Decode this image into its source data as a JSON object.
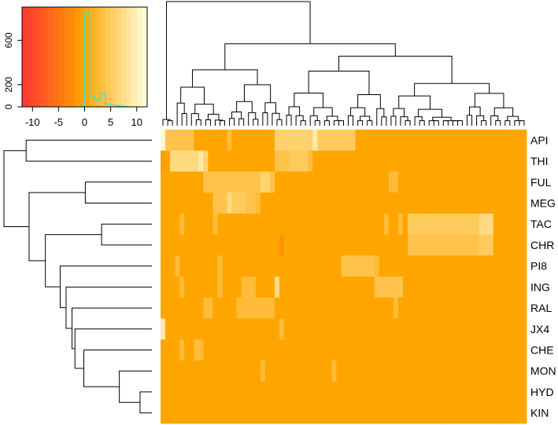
{
  "chart_data": {
    "type": "heatmap",
    "title": "",
    "xlabel": "",
    "ylabel": "",
    "rows": [
      "API",
      "THI",
      "FUL",
      "MEG",
      "TAC",
      "CHR",
      "PI8",
      "ING",
      "RAL",
      "JX4",
      "CHE",
      "MON",
      "HYD",
      "KIN"
    ],
    "column_count": 77,
    "base_value": 0,
    "color_scale": {
      "low": -12,
      "high": 12,
      "low_color": "#ff3333",
      "mid_color": "#ffa500",
      "high_color": "#ffffe0",
      "ticks": [
        "-10",
        "-5",
        "0",
        "5",
        "10"
      ]
    },
    "highlights": [
      {
        "row": "API",
        "from": 0,
        "to": 0,
        "value": 11
      },
      {
        "row": "API",
        "from": 1,
        "to": 6,
        "value": 4
      },
      {
        "row": "API",
        "from": 14,
        "to": 14,
        "value": 3
      },
      {
        "row": "API",
        "from": 24,
        "to": 31,
        "value": 6
      },
      {
        "row": "API",
        "from": 32,
        "to": 32,
        "value": 9
      },
      {
        "row": "API",
        "from": 33,
        "to": 40,
        "value": 5
      },
      {
        "row": "THI",
        "from": 0,
        "to": 0,
        "value": -1
      },
      {
        "row": "THI",
        "from": 2,
        "to": 7,
        "value": 7
      },
      {
        "row": "THI",
        "from": 8,
        "to": 8,
        "value": 9
      },
      {
        "row": "THI",
        "from": 9,
        "to": 9,
        "value": 6
      },
      {
        "row": "THI",
        "from": 24,
        "to": 26,
        "value": 4
      },
      {
        "row": "THI",
        "from": 27,
        "to": 30,
        "value": 5
      },
      {
        "row": "THI",
        "from": 31,
        "to": 31,
        "value": 3
      },
      {
        "row": "FUL",
        "from": 9,
        "to": 20,
        "value": 4
      },
      {
        "row": "FUL",
        "from": 21,
        "to": 22,
        "value": 6
      },
      {
        "row": "FUL",
        "from": 23,
        "to": 23,
        "value": 4
      },
      {
        "row": "FUL",
        "from": 48,
        "to": 49,
        "value": 3
      },
      {
        "row": "MEG",
        "from": 11,
        "to": 13,
        "value": 4
      },
      {
        "row": "MEG",
        "from": 14,
        "to": 14,
        "value": 7
      },
      {
        "row": "MEG",
        "from": 15,
        "to": 17,
        "value": 5
      },
      {
        "row": "MEG",
        "from": 18,
        "to": 19,
        "value": 4
      },
      {
        "row": "MEG",
        "from": 20,
        "to": 20,
        "value": 3
      },
      {
        "row": "TAC",
        "from": 4,
        "to": 4,
        "value": 3
      },
      {
        "row": "TAC",
        "from": 11,
        "to": 11,
        "value": 3
      },
      {
        "row": "TAC",
        "from": 47,
        "to": 47,
        "value": 3
      },
      {
        "row": "TAC",
        "from": 50,
        "to": 50,
        "value": 3
      },
      {
        "row": "TAC",
        "from": 52,
        "to": 66,
        "value": 5
      },
      {
        "row": "TAC",
        "from": 67,
        "to": 69,
        "value": 7
      },
      {
        "row": "CHR",
        "from": 25,
        "to": 25,
        "value": -2
      },
      {
        "row": "CHR",
        "from": 52,
        "to": 66,
        "value": 4
      },
      {
        "row": "CHR",
        "from": 67,
        "to": 69,
        "value": 5
      },
      {
        "row": "PI8",
        "from": 3,
        "to": 3,
        "value": 3
      },
      {
        "row": "PI8",
        "from": 12,
        "to": 12,
        "value": 3
      },
      {
        "row": "PI8",
        "from": 38,
        "to": 44,
        "value": 4
      },
      {
        "row": "PI8",
        "from": 45,
        "to": 45,
        "value": 3
      },
      {
        "row": "ING",
        "from": 4,
        "to": 4,
        "value": 3
      },
      {
        "row": "ING",
        "from": 12,
        "to": 12,
        "value": 3
      },
      {
        "row": "ING",
        "from": 17,
        "to": 19,
        "value": 3
      },
      {
        "row": "ING",
        "from": 24,
        "to": 24,
        "value": 7
      },
      {
        "row": "ING",
        "from": 45,
        "to": 50,
        "value": 4
      },
      {
        "row": "RAL",
        "from": 9,
        "to": 10,
        "value": 3
      },
      {
        "row": "RAL",
        "from": 16,
        "to": 23,
        "value": 3
      },
      {
        "row": "RAL",
        "from": 49,
        "to": 49,
        "value": 3
      },
      {
        "row": "JX4",
        "from": 0,
        "to": 0,
        "value": 9
      },
      {
        "row": "JX4",
        "from": 25,
        "to": 25,
        "value": 3
      },
      {
        "row": "CHE",
        "from": 4,
        "to": 4,
        "value": 3
      },
      {
        "row": "CHE",
        "from": 7,
        "to": 8,
        "value": 3
      },
      {
        "row": "MON",
        "from": 21,
        "to": 21,
        "value": 3
      },
      {
        "row": "MON",
        "from": 36,
        "to": 36,
        "value": 3
      }
    ],
    "histogram": {
      "x_ticks": [
        "-10",
        "-5",
        "0",
        "5",
        "10"
      ],
      "y_ticks": [
        "0",
        "200",
        "600"
      ],
      "xlim": [
        -12,
        12
      ],
      "ylim": [
        0,
        900
      ],
      "bins": [
        {
          "x0": -1,
          "x1": 0,
          "count": 2
        },
        {
          "x0": 0,
          "x1": 1,
          "count": 850
        },
        {
          "x0": 1,
          "x1": 2,
          "count": 90
        },
        {
          "x0": 2,
          "x1": 3,
          "count": 60
        },
        {
          "x0": 3,
          "x1": 4,
          "count": 120
        },
        {
          "x0": 4,
          "x1": 5,
          "count": 25
        },
        {
          "x0": 5,
          "x1": 6,
          "count": 15
        },
        {
          "x0": 6,
          "x1": 7,
          "count": 8
        },
        {
          "x0": 7,
          "x1": 8,
          "count": 3
        }
      ]
    }
  }
}
